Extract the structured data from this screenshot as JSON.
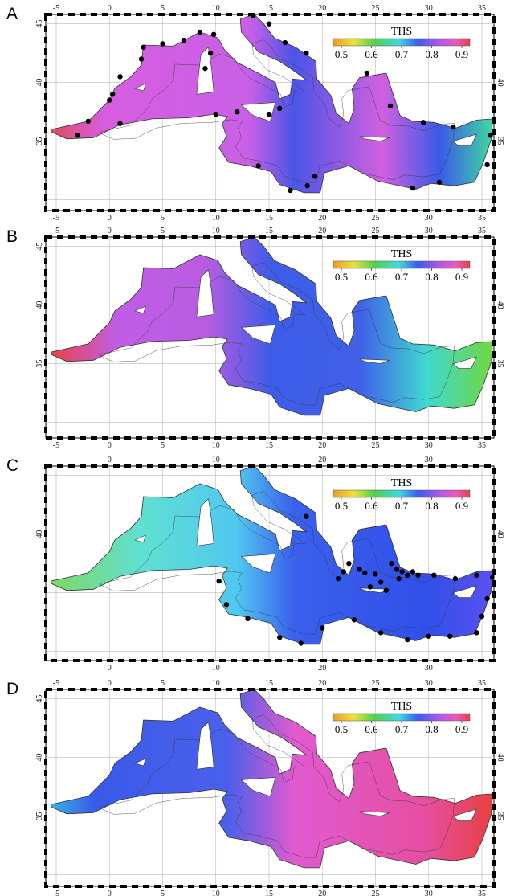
{
  "panels": [
    {
      "label": "A",
      "top_ticks": [
        -5,
        0,
        5,
        10,
        15,
        20,
        25,
        30,
        35
      ],
      "bottom_ticks": [
        -5,
        0,
        5,
        10,
        15,
        20,
        25,
        30,
        35
      ],
      "left_ticks": [
        45,
        40,
        35
      ],
      "right_ticks": [
        40,
        35
      ],
      "colorbar": {
        "title": "THS",
        "ticks": [
          0.5,
          0.6,
          0.7,
          0.8,
          0.9
        ]
      }
    },
    {
      "label": "B",
      "top_ticks": [
        -5,
        0,
        5,
        10,
        15,
        20,
        25,
        30,
        35
      ],
      "bottom_ticks": [
        -5,
        0,
        5,
        10,
        15,
        20,
        25,
        30,
        35
      ],
      "left_ticks": [
        45,
        40,
        35
      ],
      "right_ticks": [
        40,
        35
      ],
      "colorbar": {
        "title": "THS",
        "ticks": [
          0.5,
          0.6,
          0.7,
          0.8,
          0.9
        ]
      }
    },
    {
      "label": "C",
      "top_ticks": [
        0,
        10,
        20,
        30
      ],
      "bottom_ticks": [
        0,
        10,
        20,
        30
      ],
      "left_ticks": [
        40
      ],
      "right_ticks": [
        40
      ],
      "colorbar": {
        "title": "THS",
        "ticks": [
          0.5,
          0.6,
          0.7,
          0.8,
          0.9
        ]
      }
    },
    {
      "label": "D",
      "top_ticks": [
        -5,
        0,
        5,
        10,
        15,
        20,
        25,
        30,
        35
      ],
      "bottom_ticks": [
        -5,
        0,
        5,
        10,
        15,
        20,
        25,
        30,
        35
      ],
      "left_ticks": [
        45,
        40,
        35
      ],
      "right_ticks": [
        40,
        35
      ],
      "colorbar": {
        "title": "THS",
        "ticks": [
          0.5,
          0.6,
          0.7,
          0.8,
          0.9
        ]
      }
    }
  ]
}
